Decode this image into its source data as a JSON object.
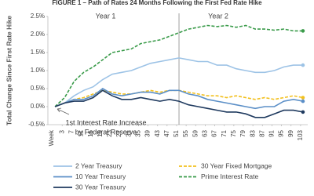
{
  "chart_data": {
    "type": "line",
    "title": "FIGURE 1 – Path of Rates 24 Months Following the First Fed Rate Hike",
    "y_label": "Total Change Since First Rate Hike",
    "x_label": "Week",
    "x": [
      0,
      4,
      8,
      12,
      16,
      20,
      24,
      28,
      32,
      36,
      40,
      44,
      48,
      52,
      56,
      60,
      64,
      68,
      72,
      76,
      80,
      84,
      88,
      92,
      96,
      100,
      104
    ],
    "xlim": [
      -3,
      106
    ],
    "xticks": [
      3,
      7,
      11,
      15,
      19,
      23,
      27,
      31,
      35,
      39,
      43,
      47,
      51,
      55,
      59,
      63,
      67,
      71,
      75,
      79,
      83,
      87,
      91,
      95,
      99,
      103
    ],
    "ylim": [
      -0.5,
      2.5
    ],
    "yticks": [
      {
        "value": -0.5,
        "label": "-0.5%"
      },
      {
        "value": 0,
        "label": "0.0%"
      },
      {
        "value": 0.5,
        "label": "0.5%"
      },
      {
        "value": 1,
        "label": "1.0%"
      },
      {
        "value": 1.5,
        "label": "1.5%"
      },
      {
        "value": 2,
        "label": "2.0%"
      },
      {
        "value": 2.5,
        "label": "2.5%"
      }
    ],
    "divider": 52,
    "periods": [
      "Year 1",
      "Year 2"
    ],
    "annotation": [
      "1st Interest Rate Increase",
      "by Federal Reserve"
    ],
    "series": [
      {
        "name": "2 Year Treasury",
        "color": "#9dc3e6",
        "dash": false,
        "values": [
          0,
          0.1,
          0.3,
          0.45,
          0.55,
          0.75,
          0.9,
          0.95,
          1.0,
          1.1,
          1.2,
          1.25,
          1.3,
          1.35,
          1.3,
          1.25,
          1.25,
          1.15,
          1.15,
          1.05,
          1.0,
          0.95,
          0.95,
          1.0,
          1.1,
          1.15,
          1.15
        ]
      },
      {
        "name": "30 Year Fixed Mortgage",
        "color": "#f2c01e",
        "dash": true,
        "values": [
          0,
          0.1,
          0.2,
          0.25,
          0.35,
          0.45,
          0.4,
          0.35,
          0.35,
          0.4,
          0.45,
          0.4,
          0.45,
          0.45,
          0.4,
          0.35,
          0.3,
          0.3,
          0.25,
          0.3,
          0.25,
          0.2,
          0.25,
          0.2,
          0.25,
          0.3,
          0.25
        ]
      },
      {
        "name": "10 Year Treasury",
        "color": "#5b8fc7",
        "dash": false,
        "values": [
          0,
          0.1,
          0.2,
          0.2,
          0.3,
          0.5,
          0.35,
          0.3,
          0.35,
          0.4,
          0.4,
          0.35,
          0.45,
          0.45,
          0.35,
          0.3,
          0.2,
          0.15,
          0.1,
          0.05,
          0.0,
          -0.05,
          0.0,
          0.0,
          0.15,
          0.2,
          0.15
        ]
      },
      {
        "name": "Prime Interest Rate",
        "color": "#3a9b4a",
        "dash": true,
        "values": [
          0,
          0.25,
          0.7,
          0.95,
          1.1,
          1.3,
          1.5,
          1.55,
          1.6,
          1.75,
          1.8,
          1.85,
          1.95,
          2.05,
          2.15,
          2.2,
          2.25,
          2.22,
          2.25,
          2.2,
          2.25,
          2.15,
          2.15,
          2.12,
          2.15,
          2.1,
          2.1
        ]
      },
      {
        "name": "30 Year Treasury",
        "color": "#1f3a5f",
        "dash": false,
        "values": [
          0,
          0.1,
          0.15,
          0.15,
          0.25,
          0.45,
          0.3,
          0.2,
          0.2,
          0.25,
          0.2,
          0.15,
          0.2,
          0.15,
          0.05,
          0.0,
          -0.05,
          -0.1,
          -0.15,
          -0.15,
          -0.2,
          -0.3,
          -0.3,
          -0.2,
          -0.1,
          -0.1,
          -0.15
        ]
      }
    ]
  }
}
